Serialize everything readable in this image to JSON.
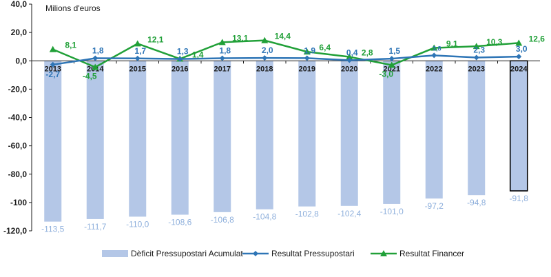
{
  "chart_data": {
    "type": "bar+line",
    "unit_label": "Milions d'euros",
    "categories": [
      "2013",
      "2014",
      "2015",
      "2016",
      "2017",
      "2018",
      "2019",
      "2020",
      "2021",
      "2022",
      "2023",
      "2024"
    ],
    "ylim": [
      -120,
      40
    ],
    "yticks": [
      "40,0",
      "20,0",
      "0,0",
      "-20,0",
      "-40,0",
      "-60,0",
      "-80,0",
      "-100",
      "-120,0"
    ],
    "highlight_category": "2024",
    "series": [
      {
        "name": "Dèficit Pressupostari Acumulat",
        "kind": "bar",
        "color": "#b4c7e7",
        "values": [
          -113.5,
          -111.7,
          -110.0,
          -108.6,
          -106.8,
          -104.8,
          -102.8,
          -102.4,
          -101.0,
          -97.2,
          -94.8,
          -91.8
        ],
        "labels": [
          "-113,5",
          "-111,7",
          "-110,0",
          "-108,6",
          "-106,8",
          "-104,8",
          "-102,8",
          "-102,4",
          "-101,0",
          "-97,2",
          "-94,8",
          "-91,8"
        ]
      },
      {
        "name": "Resultat Pressupostari",
        "kind": "line",
        "marker": "diamond",
        "color": "#2e75b6",
        "values": [
          -2.7,
          1.8,
          1.7,
          1.3,
          1.8,
          2.0,
          1.9,
          0.4,
          1.5,
          3.8,
          2.3,
          3.0
        ],
        "labels": [
          "-2,7",
          "1,8",
          "1,7",
          "1,3",
          "1,8",
          "2,0",
          "1,9",
          "0,4",
          "1,5",
          "3,8",
          "2,3",
          "3,0"
        ]
      },
      {
        "name": "Resultat Financer",
        "kind": "line",
        "marker": "triangle",
        "color": "#21a038",
        "values": [
          8.1,
          -4.5,
          12.1,
          1.4,
          13.1,
          14.4,
          6.4,
          2.8,
          -3.0,
          9.1,
          10.3,
          12.6
        ],
        "labels": [
          "8,1",
          "-4,5",
          "12,1",
          "1,4",
          "13,1",
          "14,4",
          "6,4",
          "2,8",
          "-3,0",
          "9,1",
          "10,3",
          "12,6"
        ]
      }
    ]
  }
}
